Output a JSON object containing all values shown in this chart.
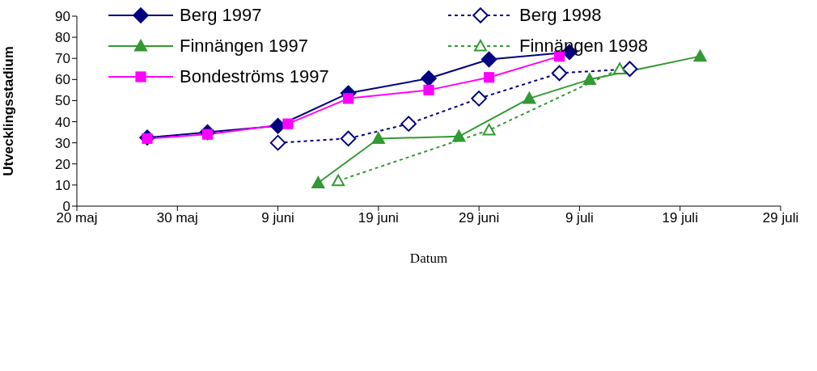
{
  "chart_data": {
    "type": "line",
    "xlabel": "Datum",
    "ylabel": "Utvecklingsstadium",
    "xlim": [
      "--05-20",
      "--07-29"
    ],
    "xticks": [
      {
        "value": "--05-20",
        "label": "20 maj"
      },
      {
        "value": "--05-30",
        "label": "30 maj"
      },
      {
        "value": "--06-09",
        "label": "9 juni"
      },
      {
        "value": "--06-19",
        "label": "19 juni"
      },
      {
        "value": "--06-29",
        "label": "29 juni"
      },
      {
        "value": "--07-09",
        "label": "9 juli"
      },
      {
        "value": "--07-19",
        "label": "19 juli"
      },
      {
        "value": "--07-29",
        "label": "29 juli"
      }
    ],
    "ylim": [
      0,
      90
    ],
    "yticks": [
      0,
      10,
      20,
      30,
      40,
      50,
      60,
      70,
      80,
      90
    ],
    "legend": "top left",
    "series": [
      {
        "name": "Berg 1997",
        "color": "#000080",
        "marker": "diamond",
        "line_style": "solid",
        "x": [
          "--05-27",
          "--06-02",
          "--06-09",
          "--06-16",
          "--06-24",
          "--06-30",
          "--07-08"
        ],
        "values": [
          32.5,
          35,
          38,
          53.5,
          60.5,
          69.5,
          73
        ]
      },
      {
        "name": "Berg 1998",
        "color": "#000080",
        "marker": "diamond",
        "line_style": "dashed",
        "x": [
          "--06-09",
          "--06-16",
          "--06-22",
          "--06-29",
          "--07-07",
          "--07-14"
        ],
        "values": [
          30,
          32,
          39,
          51,
          63,
          65
        ]
      },
      {
        "name": "Finnängen 1997",
        "color": "#339933",
        "marker": "triangle",
        "line_style": "solid",
        "x": [
          "--06-13",
          "--06-19",
          "--06-27",
          "--07-04",
          "--07-10",
          "--07-21"
        ],
        "values": [
          11,
          32,
          33,
          51,
          60,
          71
        ]
      },
      {
        "name": "Finnängen 1998",
        "color": "#339933",
        "marker": "triangle",
        "line_style": "dashed",
        "x": [
          "--06-15",
          "--06-30",
          "--07-13"
        ],
        "values": [
          12,
          36,
          65
        ]
      },
      {
        "name": "Bondeströms 1997",
        "color": "#ff00ff",
        "marker": "square",
        "line_style": "solid",
        "x": [
          "--05-27",
          "--06-02",
          "--06-10",
          "--06-16",
          "--06-24",
          "--06-30",
          "--07-07"
        ],
        "values": [
          32,
          34,
          39,
          51,
          55,
          61,
          71
        ]
      }
    ]
  }
}
